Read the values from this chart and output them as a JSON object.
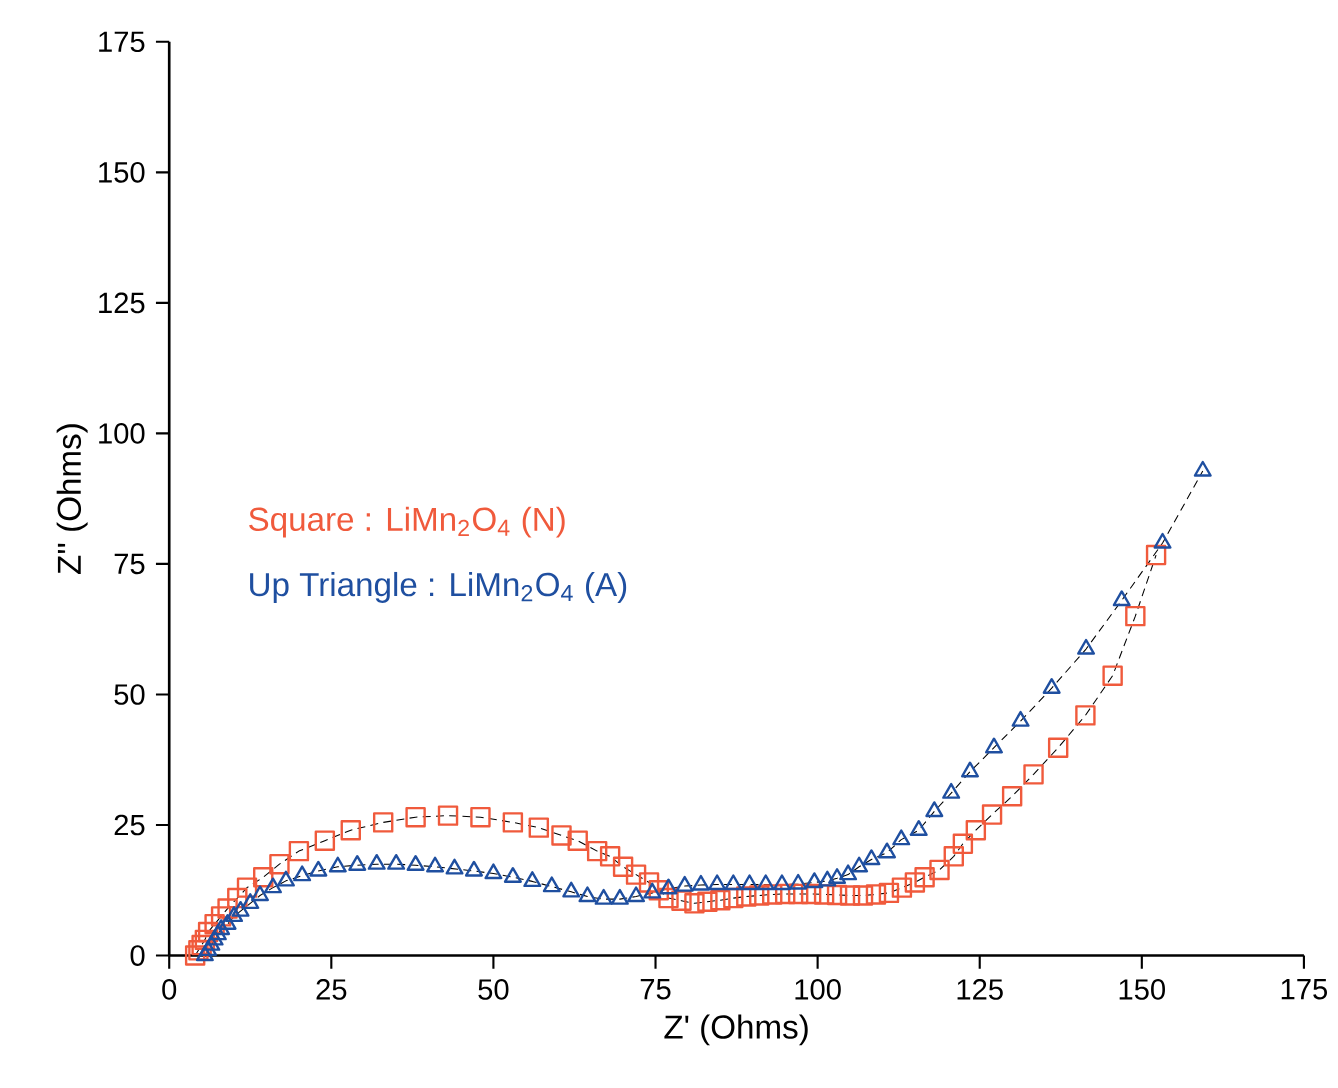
{
  "chart_data": {
    "type": "line",
    "xlabel": "Z' (Ohms)",
    "ylabel": "Z'' (Ohms)",
    "xlim": [
      0,
      175
    ],
    "ylim": [
      0,
      175
    ],
    "xticks": [
      0,
      25,
      50,
      75,
      100,
      125,
      150,
      175
    ],
    "yticks": [
      0,
      25,
      50,
      75,
      100,
      125,
      150,
      175
    ],
    "grid": false,
    "legend": "left",
    "line_style": "dashed",
    "series": [
      {
        "name": "Square       :  LiMn$_{2}$O$_{4}$ (N)",
        "color": "#f05a3c",
        "marker": "square",
        "x": [
          4,
          4.5,
          5,
          5.5,
          6,
          7,
          8,
          9,
          10.5,
          12,
          14.5,
          17,
          20,
          24,
          28,
          33,
          38,
          43,
          48,
          53,
          57,
          60.5,
          63,
          66,
          68,
          70,
          72,
          74,
          75.5,
          77,
          79,
          81,
          83,
          85,
          87,
          89,
          91,
          93,
          95,
          97,
          99,
          101,
          103,
          105,
          107,
          109,
          111,
          113,
          115,
          116.5,
          118.8,
          121,
          122.4,
          124.4,
          126.9,
          130,
          133.3,
          137.1,
          141.3,
          145.5,
          149,
          152.2
        ],
        "values": [
          0,
          1,
          2,
          3,
          4.5,
          6,
          7.5,
          9,
          11,
          13,
          15,
          17.5,
          20,
          22,
          24,
          25.5,
          26.5,
          26.8,
          26.5,
          25.5,
          24.5,
          23,
          22,
          20,
          19,
          17,
          15.5,
          14,
          12.5,
          11,
          10.5,
          10,
          10.3,
          10.6,
          11,
          11.3,
          11.5,
          11.7,
          11.8,
          11.8,
          11.8,
          11.7,
          11.6,
          11.5,
          11.5,
          11.7,
          12,
          13,
          14,
          15,
          16.4,
          19,
          21.4,
          24,
          27,
          30.5,
          34.7,
          39.8,
          46,
          53.6,
          65,
          76.7
        ]
      },
      {
        "name": "Up Triangle :  LiMn$_{2}$O$_{4}$ (A)",
        "color": "#1f4fa0",
        "marker": "triangle",
        "x": [
          5.5,
          6,
          6.5,
          7,
          7.5,
          8,
          9,
          10,
          11,
          12.5,
          14,
          16,
          18,
          20.5,
          23,
          26,
          29,
          32,
          35,
          38,
          41,
          44,
          47,
          50,
          53,
          56,
          59,
          62,
          64.5,
          67,
          69.5,
          72,
          74.5,
          77,
          79.5,
          82,
          84.5,
          87,
          89.5,
          92,
          94.5,
          97,
          99.5,
          101.5,
          103,
          104.7,
          106.4,
          108.3,
          110.7,
          112.9,
          115.6,
          118,
          120.6,
          123.5,
          127.2,
          131.3,
          136.1,
          141.4,
          146.9,
          153.2,
          159.4
        ],
        "values": [
          0,
          1,
          2,
          3,
          4,
          5,
          6,
          7.5,
          8.5,
          10,
          11.5,
          13,
          14.3,
          15.3,
          16.2,
          17,
          17.3,
          17.5,
          17.5,
          17.3,
          17,
          16.6,
          16.2,
          15.7,
          15,
          14.2,
          13.2,
          12.2,
          11.3,
          10.8,
          10.8,
          11.3,
          12,
          12.8,
          13.3,
          13.5,
          13.6,
          13.6,
          13.6,
          13.6,
          13.6,
          13.7,
          14,
          14.3,
          14.8,
          15.5,
          17,
          18.4,
          19.7,
          22.2,
          24,
          27.6,
          31.1,
          35.2,
          39.8,
          44.9,
          51.2,
          58.7,
          68,
          79,
          92.8
        ]
      }
    ]
  }
}
